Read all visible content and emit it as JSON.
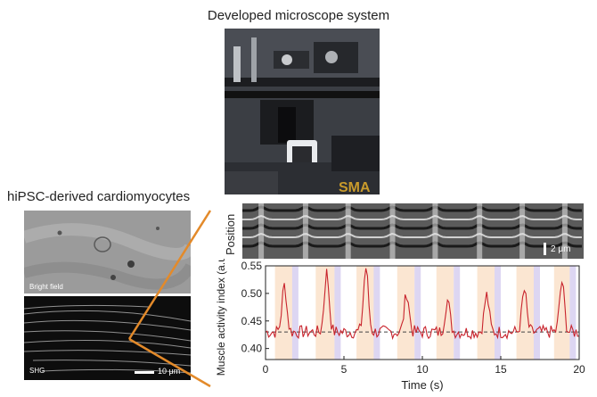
{
  "titles": {
    "microscope": "Developed microscope system",
    "cells": "hiPSC-derived cardiomyocytes"
  },
  "photo": {
    "brand_text": "SMA"
  },
  "cell_panels": {
    "bright_field_label": "Bright field",
    "shg_label": "SHG",
    "scale_bar": "10 μm"
  },
  "kymograph": {
    "axis_label": "Position",
    "scale_bar": "2 μm",
    "contraction_times_s": [
      1.1,
      3.7,
      6.2,
      8.8,
      11.3,
      13.9,
      16.4,
      18.9
    ]
  },
  "colors": {
    "trace": "#c8232c",
    "connector": "#e38a2a",
    "band_peach": "#fbe6d2",
    "band_lavender": "#ddd6f2",
    "baseline": "#444444"
  },
  "chart_data": {
    "type": "line",
    "xlabel": "Time (s)",
    "ylabel": "Muscle activity index (a.u.)",
    "xlim": [
      0,
      20
    ],
    "ylim": [
      0.38,
      0.55
    ],
    "x_ticks": [
      "0",
      "5",
      "10",
      "15",
      "20"
    ],
    "y_ticks": [
      "0.40",
      "0.45",
      "0.50",
      "0.55"
    ],
    "baseline": 0.43,
    "peaks": [
      {
        "t": 1.2,
        "value": 0.515
      },
      {
        "t": 3.9,
        "value": 0.538
      },
      {
        "t": 6.4,
        "value": 0.547
      },
      {
        "t": 9.0,
        "value": 0.501
      },
      {
        "t": 11.6,
        "value": 0.487
      },
      {
        "t": 14.1,
        "value": 0.497
      },
      {
        "t": 16.5,
        "value": 0.505
      },
      {
        "t": 18.9,
        "value": 0.521
      }
    ],
    "shaded_intervals": [
      {
        "start": 0.6,
        "end": 1.7,
        "kind": "peach"
      },
      {
        "start": 1.7,
        "end": 2.1,
        "kind": "lavender"
      },
      {
        "start": 3.2,
        "end": 4.4,
        "kind": "peach"
      },
      {
        "start": 4.4,
        "end": 4.8,
        "kind": "lavender"
      },
      {
        "start": 5.8,
        "end": 6.9,
        "kind": "peach"
      },
      {
        "start": 6.9,
        "end": 7.3,
        "kind": "lavender"
      },
      {
        "start": 8.4,
        "end": 9.5,
        "kind": "peach"
      },
      {
        "start": 9.5,
        "end": 9.9,
        "kind": "lavender"
      },
      {
        "start": 10.9,
        "end": 12.0,
        "kind": "peach"
      },
      {
        "start": 12.0,
        "end": 12.4,
        "kind": "lavender"
      },
      {
        "start": 13.5,
        "end": 14.6,
        "kind": "peach"
      },
      {
        "start": 14.6,
        "end": 15.0,
        "kind": "lavender"
      },
      {
        "start": 16.0,
        "end": 17.1,
        "kind": "peach"
      },
      {
        "start": 17.1,
        "end": 17.5,
        "kind": "lavender"
      },
      {
        "start": 18.4,
        "end": 19.4,
        "kind": "peach"
      },
      {
        "start": 19.4,
        "end": 19.8,
        "kind": "lavender"
      }
    ],
    "noise_amplitude": 0.012,
    "sample_step_s": 0.1
  }
}
